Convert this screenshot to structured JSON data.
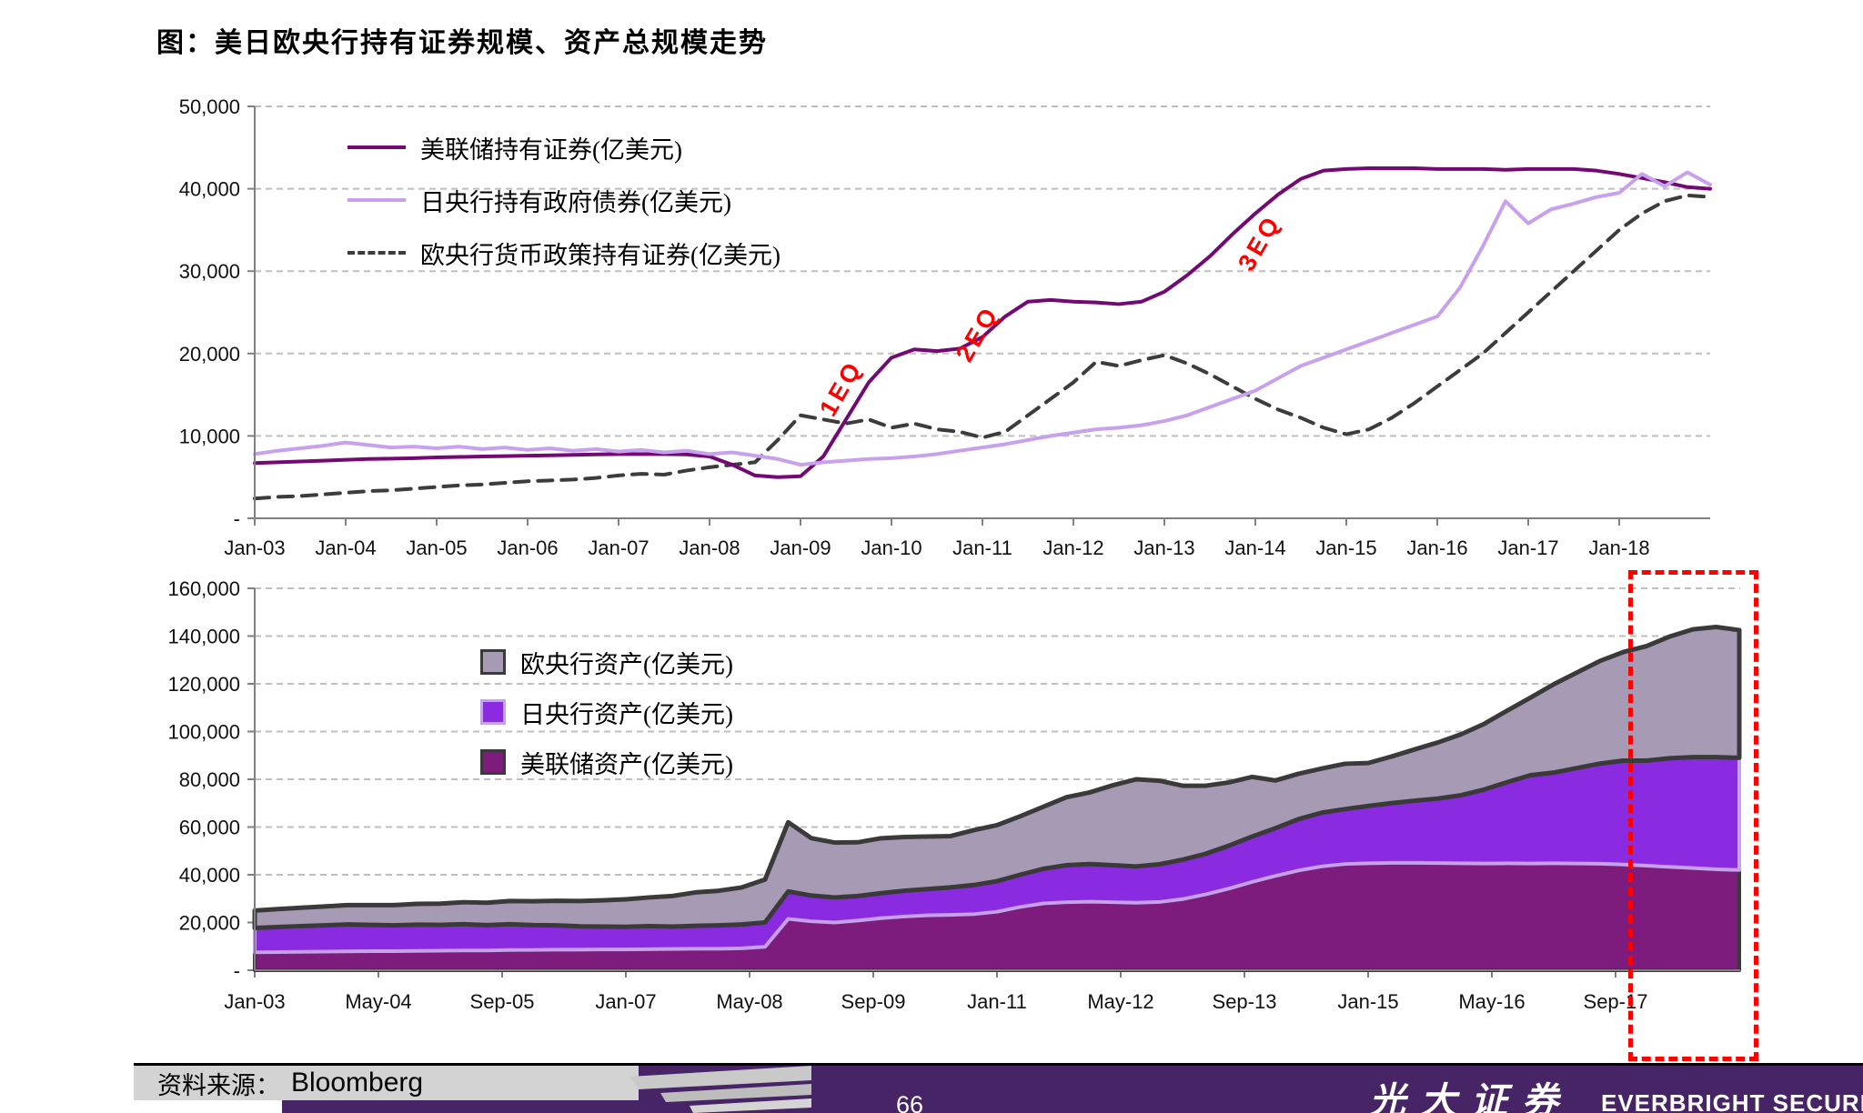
{
  "title": "图：美日欧央行持有证券规模、资产总规模走势",
  "footer": {
    "source_label": "资料来源：",
    "source_value": "Bloomberg",
    "page_number": "66",
    "brand_cn": "光大证券",
    "brand_en": "EVERBRIGHT SECURITIES"
  },
  "colors": {
    "fed_purple": "#730A73",
    "boj_lavender": "#C7A0EE",
    "ecb_dark_gray": "#3C3C3C",
    "footer_purple": "#472465",
    "highlight_red": "#FF0000",
    "gridline_gray": "#BFBFBF"
  },
  "chart_data": [
    {
      "type": "line",
      "title": "央行持有证券规模",
      "unit": "亿美元",
      "x_start_year": 2003,
      "x_step_years": 0.25,
      "x_tick_labels": [
        "Jan-03",
        "Jan-04",
        "Jan-05",
        "Jan-06",
        "Jan-07",
        "Jan-08",
        "Jan-09",
        "Jan-10",
        "Jan-11",
        "Jan-12",
        "Jan-13",
        "Jan-14",
        "Jan-15",
        "Jan-16",
        "Jan-17",
        "Jan-18"
      ],
      "y_tick_labels": [
        "-",
        "10,000",
        "20,000",
        "30,000",
        "40,000",
        "50,000"
      ],
      "ylim": [
        0,
        50000
      ],
      "grid": true,
      "legend_position": "top-left-inside",
      "series": [
        {
          "id": "fed-securities",
          "name": "美联储持有证券(亿美元)",
          "color": "#730A73",
          "style": "solid",
          "values": [
            6700,
            6800,
            6900,
            7000,
            7100,
            7200,
            7250,
            7300,
            7400,
            7450,
            7500,
            7550,
            7600,
            7650,
            7700,
            7750,
            7800,
            7800,
            7800,
            7750,
            7500,
            6500,
            5200,
            5000,
            5100,
            7500,
            12000,
            16500,
            19500,
            20500,
            20300,
            20600,
            22000,
            24500,
            26300,
            26500,
            26300,
            26200,
            26000,
            26300,
            27500,
            29500,
            31800,
            34500,
            37000,
            39300,
            41200,
            42200,
            42400,
            42500,
            42500,
            42500,
            42400,
            42400,
            42400,
            42300,
            42400,
            42400,
            42400,
            42200,
            41800,
            41300,
            40800,
            40200,
            40000
          ]
        },
        {
          "id": "boj-jgb-holdings",
          "name": "日央行持有政府债券(亿美元)",
          "color": "#C7A0EE",
          "style": "solid",
          "values": [
            7800,
            8200,
            8500,
            8800,
            9200,
            8900,
            8600,
            8700,
            8500,
            8700,
            8400,
            8600,
            8300,
            8500,
            8200,
            8400,
            8100,
            8300,
            8000,
            8200,
            7800,
            8000,
            7600,
            7200,
            6500,
            6800,
            7000,
            7200,
            7300,
            7500,
            7800,
            8200,
            8600,
            9000,
            9500,
            10000,
            10400,
            10800,
            11000,
            11300,
            11800,
            12500,
            13500,
            14500,
            15500,
            17000,
            18500,
            19500,
            20500,
            21500,
            22500,
            23500,
            24500,
            28000,
            33000,
            38500,
            35800,
            37500,
            38200,
            39000,
            39500,
            41800,
            40300,
            42000,
            40500
          ]
        },
        {
          "id": "ecb-policy-securities",
          "name": "欧央行货币政策持有证券(亿美元)",
          "color": "#3C3C3C",
          "style": "dashed",
          "values": [
            2400,
            2600,
            2700,
            2900,
            3100,
            3300,
            3400,
            3600,
            3800,
            4000,
            4100,
            4300,
            4500,
            4600,
            4700,
            4900,
            5200,
            5400,
            5300,
            5800,
            6200,
            6500,
            6800,
            9500,
            12500,
            12000,
            11500,
            12000,
            11000,
            11500,
            10800,
            10500,
            9800,
            10500,
            12500,
            14500,
            16500,
            19000,
            18500,
            19200,
            19800,
            18800,
            17500,
            16000,
            14500,
            13200,
            12200,
            11000,
            10200,
            10800,
            12200,
            14000,
            16000,
            18000,
            20000,
            22500,
            25000,
            27500,
            30000,
            32500,
            35000,
            37000,
            38500,
            39200,
            39000
          ]
        }
      ],
      "annotations": [
        {
          "label": "QE1",
          "x_year": 2009.45,
          "y_value": 15800
        },
        {
          "label": "QE2",
          "x_year": 2010.95,
          "y_value": 22400
        },
        {
          "label": "QE3",
          "x_year": 2014.05,
          "y_value": 33400
        }
      ]
    },
    {
      "type": "area",
      "stacked": true,
      "title": "央行资产总规模",
      "unit": "亿美元",
      "x_start_year": 2003,
      "x_step_years": 0.25,
      "x_tick_labels": [
        "Jan-03",
        "May-04",
        "Sep-05",
        "Jan-07",
        "May-08",
        "Sep-09",
        "Jan-11",
        "May-12",
        "Sep-13",
        "Jan-15",
        "May-16",
        "Sep-17"
      ],
      "x_tick_interval_months": 16,
      "y_tick_labels": [
        "-",
        "20,000",
        "40,000",
        "60,000",
        "80,000",
        "100,000",
        "120,000",
        "140,000",
        "160,000"
      ],
      "ylim": [
        0,
        160000
      ],
      "grid": true,
      "legend_position": "top-left-inside",
      "highlight_box_from_label": "Sep-17",
      "series": [
        {
          "id": "fed-assets",
          "name": "美联储资产(亿美元)",
          "fill": "#7D1C7D",
          "edge": "#3A3A3A",
          "values": [
            7500,
            7600,
            7700,
            7800,
            7900,
            8000,
            8000,
            8100,
            8200,
            8300,
            8300,
            8500,
            8500,
            8600,
            8600,
            8700,
            8700,
            8800,
            8900,
            9000,
            9000,
            9200,
            9800,
            21500,
            20500,
            20000,
            20800,
            21800,
            22500,
            23000,
            23200,
            23500,
            24500,
            26500,
            28000,
            28500,
            28700,
            28500,
            28300,
            28600,
            29800,
            31800,
            34200,
            37000,
            39500,
            41800,
            43500,
            44500,
            44800,
            45000,
            45000,
            44900,
            44800,
            44700,
            44800,
            44700,
            44800,
            44700,
            44600,
            44300,
            43800,
            43300,
            42800,
            42300,
            42000
          ]
        },
        {
          "id": "boj-assets",
          "name": "日央行资产(亿美元)",
          "fill": "#8A2BE2",
          "edge": "#C7A0EE",
          "values": [
            10200,
            10500,
            10800,
            11000,
            11300,
            11000,
            10800,
            11000,
            10800,
            11000,
            10600,
            10800,
            10400,
            10200,
            9800,
            9600,
            9500,
            9700,
            9400,
            9600,
            9800,
            10000,
            10200,
            11500,
            10800,
            10500,
            10300,
            10500,
            10800,
            11000,
            11500,
            12200,
            12800,
            13500,
            14500,
            15500,
            15800,
            15500,
            15200,
            15800,
            16500,
            17000,
            18000,
            19000,
            20000,
            21500,
            22500,
            23000,
            24000,
            25000,
            26000,
            27000,
            28500,
            31000,
            34000,
            37000,
            38000,
            40000,
            42000,
            43500,
            44000,
            45500,
            46500,
            47000,
            47000
          ]
        },
        {
          "id": "ecb-assets",
          "name": "欧央行资产(亿美元)",
          "fill": "#A79AB5",
          "edge": "#3A3A3A",
          "values": [
            7300,
            7500,
            7700,
            7900,
            8100,
            8300,
            8500,
            8700,
            8900,
            9200,
            9400,
            9700,
            10000,
            10300,
            10600,
            11000,
            11500,
            12000,
            12800,
            14000,
            14500,
            15500,
            18000,
            29000,
            24000,
            23000,
            22500,
            23000,
            22500,
            22000,
            21500,
            23000,
            23500,
            24500,
            26000,
            28500,
            30000,
            33500,
            36500,
            35000,
            31000,
            28500,
            26500,
            25000,
            20000,
            19000,
            18500,
            19000,
            18000,
            19500,
            21500,
            23500,
            25500,
            27500,
            30000,
            32500,
            37000,
            40000,
            43000,
            45500,
            48000,
            51000,
            53500,
            54500,
            53500
          ]
        }
      ]
    }
  ]
}
